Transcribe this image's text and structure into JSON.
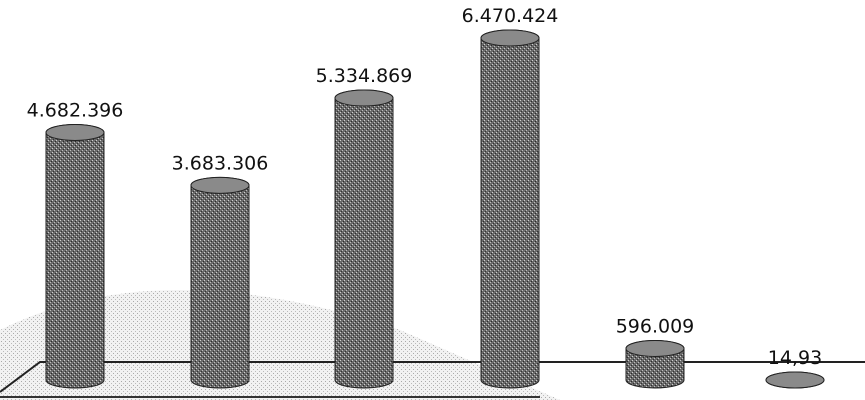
{
  "chart_data": {
    "type": "cylinder-bar",
    "values": [
      4682396,
      3683306,
      5334869,
      6470424,
      596009,
      14.93
    ],
    "value_labels": [
      "4.682.396",
      "3.683.306",
      "5.334.869",
      "6.470.424",
      "596.009",
      "14,93"
    ],
    "color": "#555555"
  }
}
